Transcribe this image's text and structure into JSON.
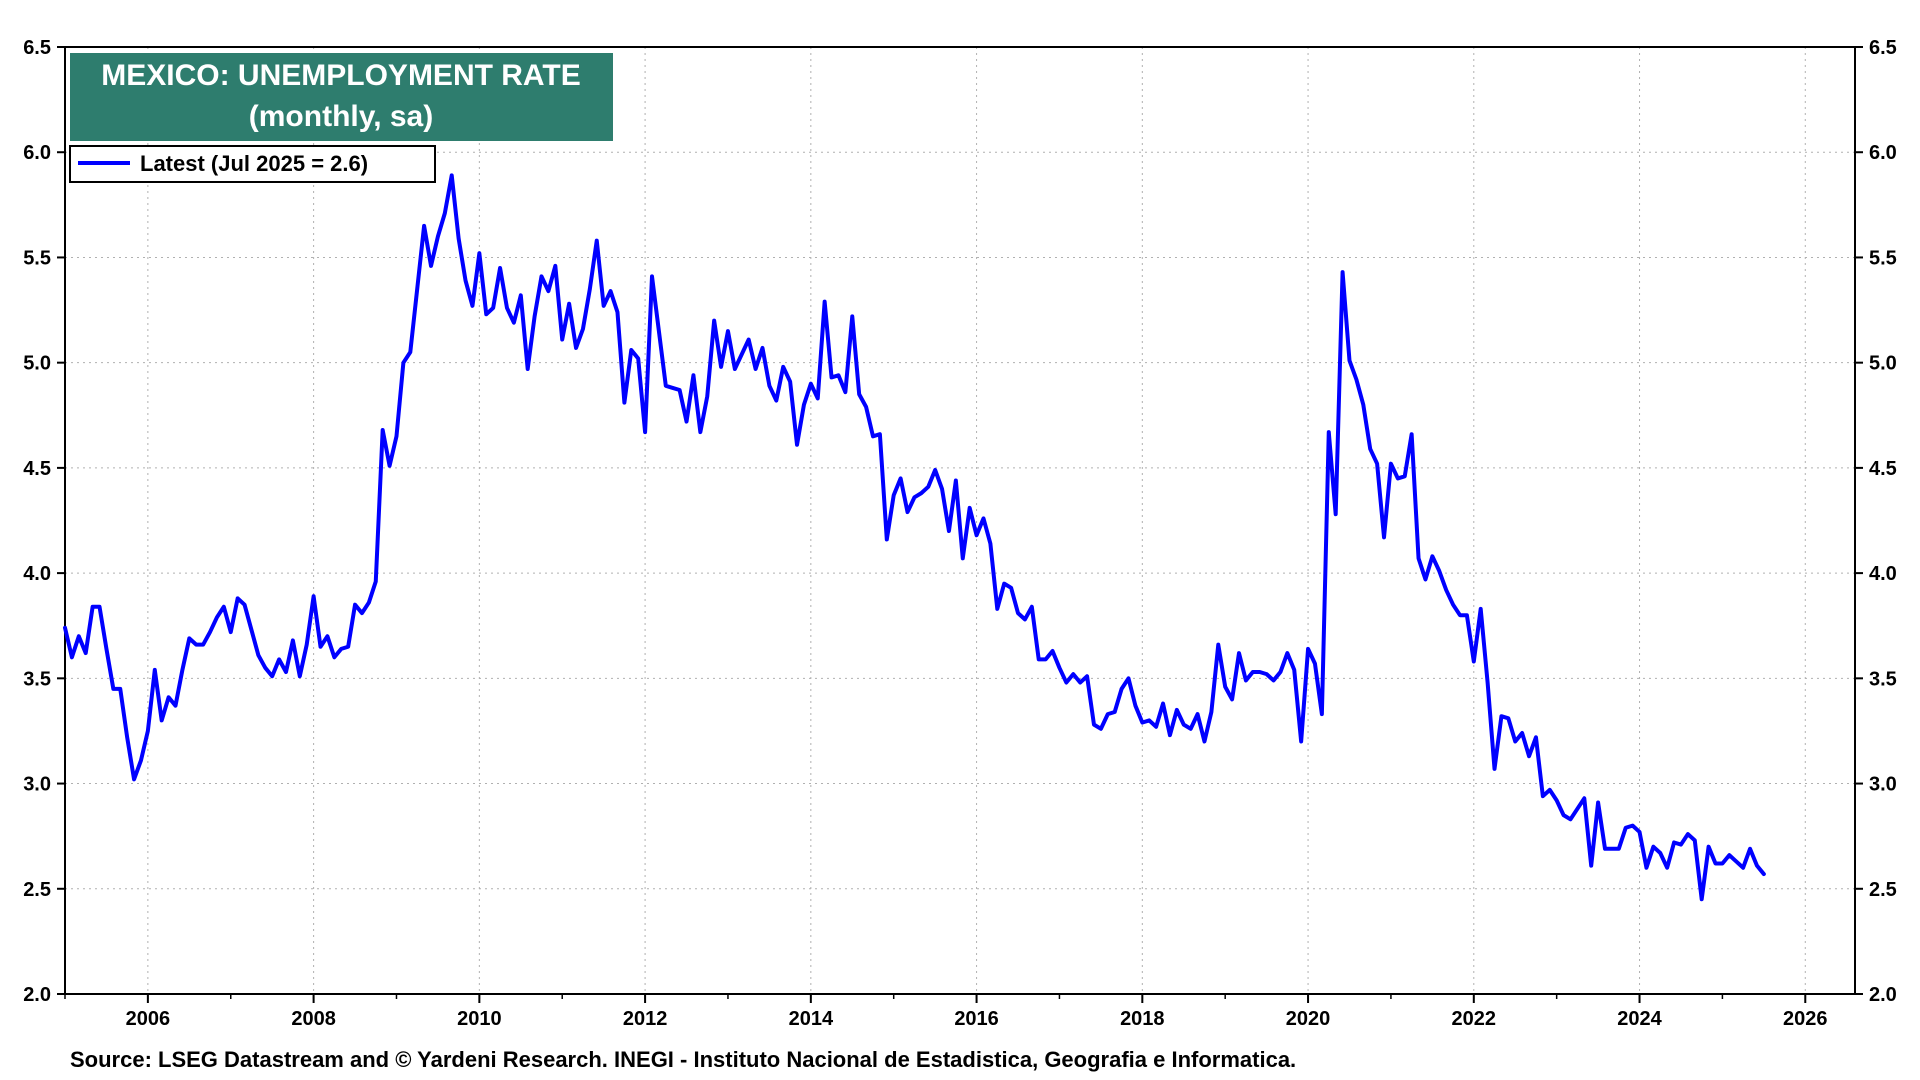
{
  "colors": {
    "line": "#0000ff",
    "title_bg": "#2e7d6e",
    "title_text": "#ffffff",
    "grid": "#b0b0b0",
    "frame": "#000000"
  },
  "source": "Source: LSEG Datastream and © Yardeni Research. INEGI - Instituto Nacional de Estadistica, Geografia e Informatica.",
  "chart_data": {
    "type": "line",
    "title": "MEXICO: UNEMPLOYMENT RATE",
    "subtitle": "(monthly, sa)",
    "legend_position": "top-left",
    "grid": true,
    "xlim": [
      2005.0,
      2026.6
    ],
    "ylim": [
      2.0,
      6.5
    ],
    "x_ticks": [
      2006,
      2008,
      2010,
      2012,
      2014,
      2016,
      2018,
      2020,
      2022,
      2024,
      2026
    ],
    "x_tick_labels": [
      "2006",
      "2008",
      "2010",
      "2012",
      "2014",
      "2016",
      "2018",
      "2020",
      "2022",
      "2024",
      "2026"
    ],
    "y_ticks": [
      2.0,
      2.5,
      3.0,
      3.5,
      4.0,
      4.5,
      5.0,
      5.5,
      6.0,
      6.5
    ],
    "y_tick_labels": [
      "2.0",
      "2.5",
      "3.0",
      "3.5",
      "4.0",
      "4.5",
      "5.0",
      "5.5",
      "6.0",
      "6.5"
    ],
    "series": [
      {
        "name": "Latest (Jul 2025 = 2.6)",
        "start_year": 2005,
        "start_month": 1,
        "values": [
          3.74,
          3.6,
          3.7,
          3.62,
          3.84,
          3.84,
          3.64,
          3.45,
          3.45,
          3.22,
          3.02,
          3.11,
          3.25,
          3.54,
          3.3,
          3.41,
          3.37,
          3.54,
          3.69,
          3.66,
          3.66,
          3.72,
          3.79,
          3.84,
          3.72,
          3.88,
          3.85,
          3.73,
          3.61,
          3.55,
          3.51,
          3.59,
          3.53,
          3.68,
          3.51,
          3.66,
          3.89,
          3.65,
          3.7,
          3.6,
          3.64,
          3.65,
          3.85,
          3.81,
          3.86,
          3.96,
          4.68,
          4.51,
          4.65,
          5.0,
          5.05,
          5.35,
          5.65,
          5.46,
          5.6,
          5.71,
          5.89,
          5.59,
          5.39,
          5.27,
          5.52,
          5.23,
          5.26,
          5.45,
          5.26,
          5.19,
          5.32,
          4.97,
          5.22,
          5.41,
          5.34,
          5.46,
          5.11,
          5.28,
          5.07,
          5.16,
          5.35,
          5.58,
          5.27,
          5.34,
          5.24,
          4.81,
          5.06,
          5.02,
          4.67,
          5.41,
          5.15,
          4.89,
          4.88,
          4.87,
          4.72,
          4.94,
          4.67,
          4.84,
          5.2,
          4.98,
          5.15,
          4.97,
          5.04,
          5.11,
          4.97,
          5.07,
          4.89,
          4.82,
          4.98,
          4.91,
          4.61,
          4.8,
          4.9,
          4.83,
          5.29,
          4.93,
          4.94,
          4.86,
          5.22,
          4.85,
          4.79,
          4.65,
          4.66,
          4.16,
          4.37,
          4.45,
          4.29,
          4.36,
          4.38,
          4.41,
          4.49,
          4.4,
          4.2,
          4.44,
          4.07,
          4.31,
          4.18,
          4.26,
          4.14,
          3.83,
          3.95,
          3.93,
          3.81,
          3.78,
          3.84,
          3.59,
          3.59,
          3.63,
          3.55,
          3.48,
          3.52,
          3.48,
          3.51,
          3.28,
          3.26,
          3.33,
          3.34,
          3.45,
          3.5,
          3.37,
          3.29,
          3.3,
          3.27,
          3.38,
          3.23,
          3.35,
          3.28,
          3.26,
          3.33,
          3.2,
          3.34,
          3.66,
          3.46,
          3.4,
          3.62,
          3.49,
          3.53,
          3.53,
          3.52,
          3.49,
          3.53,
          3.62,
          3.54,
          3.2,
          3.64,
          3.57,
          3.33,
          4.67,
          4.28,
          5.43,
          5.01,
          4.92,
          4.8,
          4.59,
          4.52,
          4.17,
          4.52,
          4.45,
          4.46,
          4.66,
          4.07,
          3.97,
          4.08,
          4.01,
          3.92,
          3.85,
          3.8,
          3.8,
          3.58,
          3.83,
          3.48,
          3.07,
          3.32,
          3.31,
          3.2,
          3.24,
          3.13,
          3.22,
          2.94,
          2.97,
          2.92,
          2.85,
          2.83,
          2.88,
          2.93,
          2.61,
          2.91,
          2.69,
          2.69,
          2.69,
          2.79,
          2.8,
          2.77,
          2.6,
          2.7,
          2.67,
          2.6,
          2.72,
          2.71,
          2.76,
          2.73,
          2.45,
          2.7,
          2.62,
          2.62,
          2.66,
          2.63,
          2.6,
          2.69,
          2.61,
          2.57
        ]
      }
    ]
  }
}
